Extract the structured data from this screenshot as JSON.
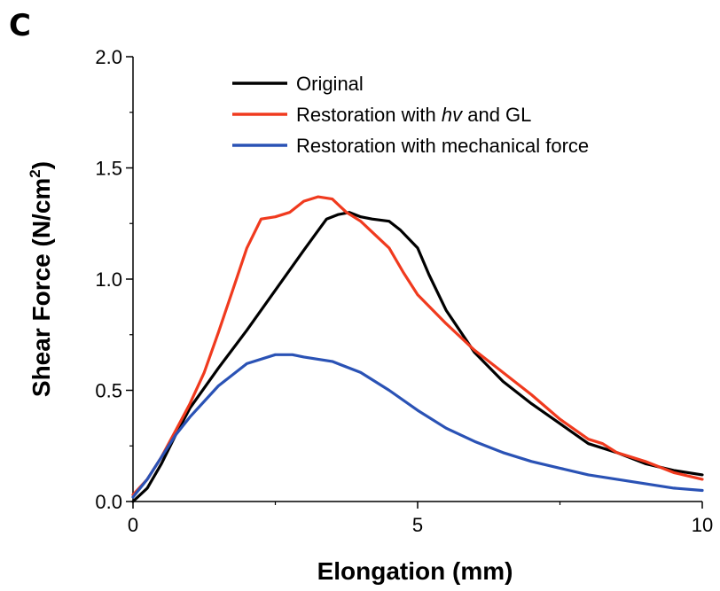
{
  "panel_label": "C",
  "chart_data": {
    "type": "line",
    "xlabel": "Elongation (mm)",
    "ylabel_main": "Shear Force (N/cm",
    "ylabel_sup": "2",
    "ylabel_close": ")",
    "xlim": [
      0,
      10
    ],
    "ylim": [
      0,
      2.0
    ],
    "x_ticks": [
      0,
      5,
      10
    ],
    "x_tick_labels": [
      "0",
      "5",
      "10"
    ],
    "y_ticks": [
      0,
      0.5,
      1.0,
      1.5,
      2.0
    ],
    "y_tick_labels": [
      "0.0",
      "0.5",
      "1.0",
      "1.5",
      "2.0"
    ],
    "grid": false,
    "legend_position": "top-right",
    "legend": [
      {
        "text_before": "Original",
        "italic": "",
        "text_after": ""
      },
      {
        "text_before": "Restoration with ",
        "italic": "hv",
        "text_after": " and GL"
      },
      {
        "text_before": "Restoration with mechanical force",
        "italic": "",
        "text_after": ""
      }
    ],
    "series": [
      {
        "name": "Original",
        "color": "#000000",
        "x": [
          0.0,
          0.25,
          0.5,
          0.75,
          1.0,
          1.5,
          2.0,
          2.5,
          3.0,
          3.2,
          3.4,
          3.5,
          3.6,
          3.8,
          4.0,
          4.2,
          4.5,
          4.7,
          5.0,
          5.2,
          5.5,
          6.0,
          6.5,
          7.0,
          7.5,
          8.0,
          8.5,
          9.0,
          9.5,
          10.0
        ],
        "y": [
          0.0,
          0.06,
          0.17,
          0.3,
          0.42,
          0.6,
          0.77,
          0.95,
          1.13,
          1.2,
          1.27,
          1.28,
          1.29,
          1.3,
          1.28,
          1.27,
          1.26,
          1.22,
          1.14,
          1.02,
          0.86,
          0.67,
          0.54,
          0.44,
          0.35,
          0.26,
          0.22,
          0.17,
          0.14,
          0.12
        ]
      },
      {
        "name": "Restoration with hv and GL",
        "color": "#f03a1e",
        "x": [
          0.0,
          0.25,
          0.5,
          0.75,
          1.0,
          1.25,
          1.5,
          1.75,
          2.0,
          2.25,
          2.5,
          2.75,
          3.0,
          3.25,
          3.5,
          3.75,
          4.0,
          4.25,
          4.5,
          4.75,
          5.0,
          5.5,
          6.0,
          6.5,
          7.0,
          7.5,
          8.0,
          8.25,
          8.5,
          9.0,
          9.5,
          10.0
        ],
        "y": [
          0.03,
          0.1,
          0.2,
          0.32,
          0.44,
          0.58,
          0.76,
          0.95,
          1.14,
          1.27,
          1.28,
          1.3,
          1.35,
          1.37,
          1.36,
          1.3,
          1.26,
          1.2,
          1.14,
          1.03,
          0.93,
          0.8,
          0.68,
          0.58,
          0.48,
          0.37,
          0.28,
          0.26,
          0.22,
          0.18,
          0.13,
          0.1
        ]
      },
      {
        "name": "Restoration with mechanical force",
        "color": "#2a52b5",
        "x": [
          0.0,
          0.25,
          0.5,
          0.75,
          1.0,
          1.5,
          2.0,
          2.5,
          2.8,
          3.0,
          3.5,
          4.0,
          4.5,
          5.0,
          5.5,
          6.0,
          6.5,
          7.0,
          7.5,
          8.0,
          8.5,
          9.0,
          9.5,
          10.0
        ],
        "y": [
          0.02,
          0.1,
          0.2,
          0.3,
          0.38,
          0.52,
          0.62,
          0.66,
          0.66,
          0.65,
          0.63,
          0.58,
          0.5,
          0.41,
          0.33,
          0.27,
          0.22,
          0.18,
          0.15,
          0.12,
          0.1,
          0.08,
          0.06,
          0.05
        ]
      }
    ]
  }
}
